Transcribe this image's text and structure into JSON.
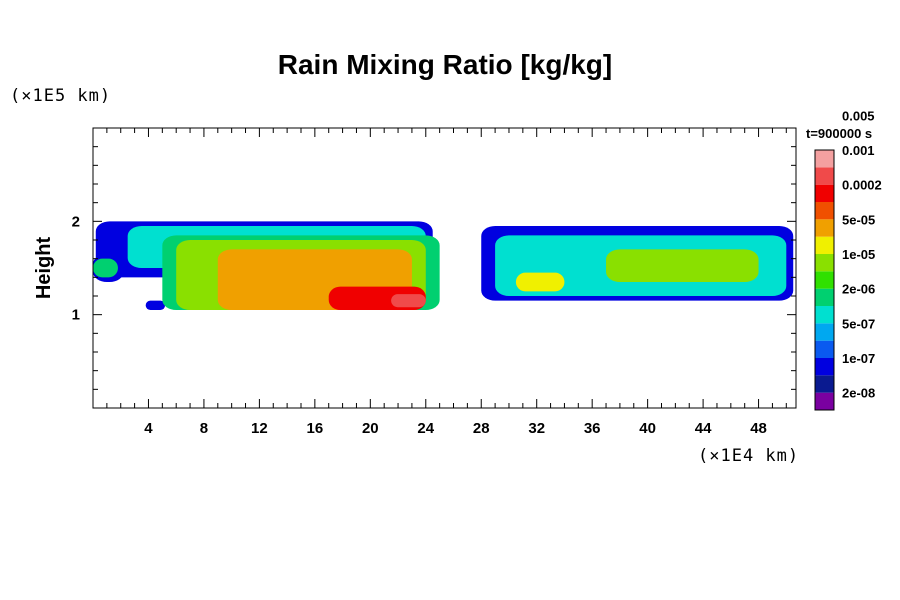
{
  "chart_data": {
    "type": "heatmap",
    "title": "Rain Mixing Ratio [kg/kg]",
    "ylabel": "Height",
    "xlabel": "",
    "x_scale_label": "(×1E4 km)",
    "y_scale_label": "(×1E5 km)",
    "time_label": "t=900000 s",
    "xlim": [
      0,
      50.7
    ],
    "ylim": [
      0,
      3
    ],
    "x_ticks": [
      4,
      8,
      12,
      16,
      20,
      24,
      28,
      32,
      36,
      40,
      44,
      48
    ],
    "y_ticks": [
      1,
      2
    ],
    "colorbar": {
      "colors": [
        "#7a00a0",
        "#0a1a90",
        "#0000e0",
        "#0a5af0",
        "#00a8f0",
        "#00e0d0",
        "#00d070",
        "#30e000",
        "#8ae000",
        "#f0f000",
        "#f0a000",
        "#f05000",
        "#f00000",
        "#f04a4a",
        "#f4a0a0"
      ],
      "labels": [
        "2e-08",
        "1e-07",
        "5e-07",
        "2e-06",
        "1e-05",
        "5e-05",
        "0.0002",
        "0.001",
        "0.005"
      ]
    },
    "rain_field": [
      {
        "x": [
          0.2,
          24.5
        ],
        "y": [
          1.4,
          2.0
        ],
        "level": 2
      },
      {
        "x": [
          28,
          50.5
        ],
        "y": [
          1.15,
          1.95
        ],
        "level": 2
      },
      {
        "x": [
          0,
          2.2
        ],
        "y": [
          1.35,
          1.65
        ],
        "level": 2
      },
      {
        "x": [
          3.8,
          5.2
        ],
        "y": [
          1.05,
          1.15
        ],
        "level": 2
      },
      {
        "x": [
          2.5,
          24
        ],
        "y": [
          1.5,
          1.95
        ],
        "level": 5
      },
      {
        "x": [
          5,
          25
        ],
        "y": [
          1.05,
          1.85
        ],
        "level": 6
      },
      {
        "x": [
          29,
          50
        ],
        "y": [
          1.2,
          1.85
        ],
        "level": 5
      },
      {
        "x": [
          0,
          1.8
        ],
        "y": [
          1.4,
          1.6
        ],
        "level": 6
      },
      {
        "x": [
          6,
          24
        ],
        "y": [
          1.05,
          1.8
        ],
        "level": 8
      },
      {
        "x": [
          9,
          23
        ],
        "y": [
          1.05,
          1.7
        ],
        "level": 10
      },
      {
        "x": [
          17,
          24
        ],
        "y": [
          1.05,
          1.3
        ],
        "level": 12
      },
      {
        "x": [
          21.5,
          24
        ],
        "y": [
          1.08,
          1.22
        ],
        "level": 13
      },
      {
        "x": [
          30.5,
          34
        ],
        "y": [
          1.25,
          1.45
        ],
        "level": 9
      },
      {
        "x": [
          37,
          48
        ],
        "y": [
          1.35,
          1.7
        ],
        "level": 8
      }
    ]
  }
}
